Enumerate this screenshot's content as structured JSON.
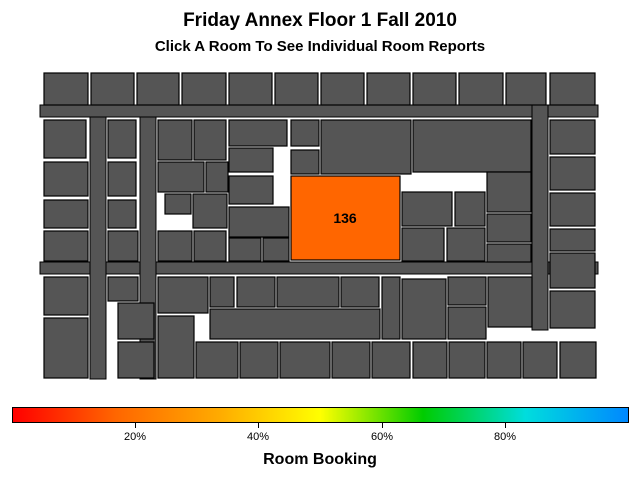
{
  "header": {
    "title": "Friday Annex Floor 1 Fall 2010",
    "subtitle": "Click A Room To See Individual Room Reports"
  },
  "floorplan": {
    "highlighted_room": {
      "label": "136",
      "color": "#FF6600"
    },
    "room_color": "#555555"
  },
  "legend": {
    "title": "Room Booking",
    "ticks": [
      "20%",
      "40%",
      "60%",
      "80%"
    ],
    "gradient_colors": [
      "#FF0000",
      "#FF6600",
      "#FFAA00",
      "#FFFF00",
      "#00CC00",
      "#00DDDD",
      "#0088FF"
    ]
  }
}
